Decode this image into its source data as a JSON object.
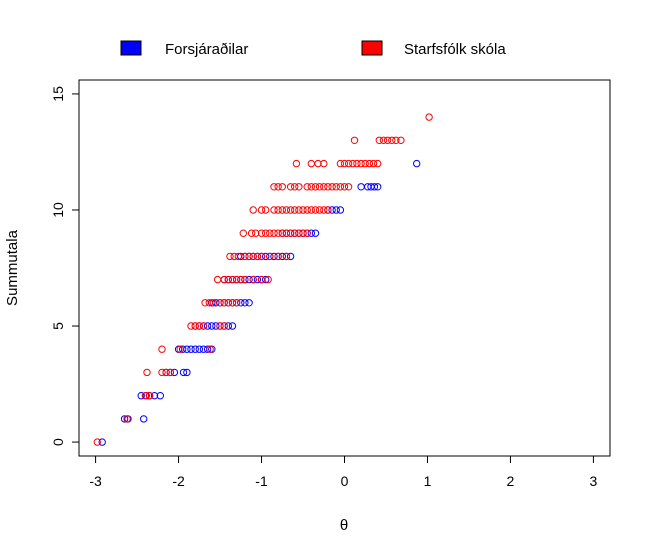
{
  "chart_data": {
    "type": "scatter",
    "title": "",
    "xlabel": "θ",
    "ylabel": "Summutala",
    "xlim": [
      -3.2,
      3.2
    ],
    "ylim": [
      -0.6,
      15.6
    ],
    "xticks": [
      "-3",
      "-2",
      "-1",
      "0",
      "1",
      "2",
      "3"
    ],
    "yticks": [
      "0",
      "5",
      "10",
      "15"
    ],
    "grid": false,
    "legend_position": "top",
    "series": [
      {
        "name": "Forsjáraðilar",
        "color": "#0000FF",
        "marker": "open-circle",
        "points": [
          [
            -2.92,
            0
          ],
          [
            -2.65,
            1
          ],
          [
            -2.61,
            1
          ],
          [
            -2.42,
            1
          ],
          [
            -2.45,
            2
          ],
          [
            -2.39,
            2
          ],
          [
            -2.35,
            2
          ],
          [
            -2.29,
            2
          ],
          [
            -2.22,
            2
          ],
          [
            -2.15,
            3
          ],
          [
            -2.1,
            3
          ],
          [
            -2.05,
            3
          ],
          [
            -1.94,
            3
          ],
          [
            -1.9,
            3
          ],
          [
            -2.0,
            4
          ],
          [
            -1.95,
            4
          ],
          [
            -1.9,
            4
          ],
          [
            -1.85,
            4
          ],
          [
            -1.8,
            4
          ],
          [
            -1.75,
            4
          ],
          [
            -1.7,
            4
          ],
          [
            -1.65,
            4
          ],
          [
            -1.6,
            4
          ],
          [
            -1.8,
            5
          ],
          [
            -1.75,
            5
          ],
          [
            -1.7,
            5
          ],
          [
            -1.65,
            5
          ],
          [
            -1.6,
            5
          ],
          [
            -1.55,
            5
          ],
          [
            -1.5,
            5
          ],
          [
            -1.45,
            5
          ],
          [
            -1.4,
            5
          ],
          [
            -1.35,
            5
          ],
          [
            -1.6,
            6
          ],
          [
            -1.55,
            6
          ],
          [
            -1.5,
            6
          ],
          [
            -1.45,
            6
          ],
          [
            -1.4,
            6
          ],
          [
            -1.35,
            6
          ],
          [
            -1.3,
            6
          ],
          [
            -1.25,
            6
          ],
          [
            -1.2,
            6
          ],
          [
            -1.15,
            6
          ],
          [
            -1.45,
            7
          ],
          [
            -1.4,
            7
          ],
          [
            -1.35,
            7
          ],
          [
            -1.3,
            7
          ],
          [
            -1.25,
            7
          ],
          [
            -1.2,
            7
          ],
          [
            -1.15,
            7
          ],
          [
            -1.1,
            7
          ],
          [
            -1.05,
            7
          ],
          [
            -1.0,
            7
          ],
          [
            -0.95,
            7
          ],
          [
            -1.25,
            8
          ],
          [
            -1.2,
            8
          ],
          [
            -1.15,
            8
          ],
          [
            -1.1,
            8
          ],
          [
            -1.05,
            8
          ],
          [
            -1.0,
            8
          ],
          [
            -0.95,
            8
          ],
          [
            -0.9,
            8
          ],
          [
            -0.85,
            8
          ],
          [
            -0.8,
            8
          ],
          [
            -0.75,
            8
          ],
          [
            -0.7,
            8
          ],
          [
            -0.65,
            8
          ],
          [
            -0.75,
            9
          ],
          [
            -0.7,
            9
          ],
          [
            -0.65,
            9
          ],
          [
            -0.6,
            9
          ],
          [
            -0.55,
            9
          ],
          [
            -0.5,
            9
          ],
          [
            -0.45,
            9
          ],
          [
            -0.4,
            9
          ],
          [
            -0.35,
            9
          ],
          [
            -0.2,
            10
          ],
          [
            -0.15,
            10
          ],
          [
            -0.1,
            10
          ],
          [
            -0.05,
            10
          ],
          [
            0.2,
            11
          ],
          [
            0.28,
            11
          ],
          [
            0.32,
            11
          ],
          [
            0.36,
            11
          ],
          [
            0.4,
            11
          ],
          [
            0.87,
            12
          ]
        ]
      },
      {
        "name": "Starfsfólk skóla",
        "color": "#FF0000",
        "marker": "open-circle",
        "points": [
          [
            -2.98,
            0
          ],
          [
            -2.62,
            1
          ],
          [
            -2.4,
            2
          ],
          [
            -2.35,
            2
          ],
          [
            -2.38,
            3
          ],
          [
            -2.2,
            3
          ],
          [
            -2.15,
            3
          ],
          [
            -2.1,
            3
          ],
          [
            -2.2,
            4
          ],
          [
            -1.98,
            4
          ],
          [
            -1.62,
            4
          ],
          [
            -1.85,
            5
          ],
          [
            -1.8,
            5
          ],
          [
            -1.75,
            5
          ],
          [
            -1.7,
            5
          ],
          [
            -1.5,
            5
          ],
          [
            -1.45,
            5
          ],
          [
            -1.68,
            6
          ],
          [
            -1.63,
            6
          ],
          [
            -1.58,
            6
          ],
          [
            -1.5,
            6
          ],
          [
            -1.45,
            6
          ],
          [
            -1.4,
            6
          ],
          [
            -1.35,
            6
          ],
          [
            -1.3,
            6
          ],
          [
            -1.53,
            7
          ],
          [
            -1.45,
            7
          ],
          [
            -1.4,
            7
          ],
          [
            -1.35,
            7
          ],
          [
            -1.3,
            7
          ],
          [
            -1.25,
            7
          ],
          [
            -1.2,
            7
          ],
          [
            -1.1,
            7
          ],
          [
            -1.0,
            7
          ],
          [
            -0.92,
            7
          ],
          [
            -1.38,
            8
          ],
          [
            -1.33,
            8
          ],
          [
            -1.28,
            8
          ],
          [
            -1.2,
            8
          ],
          [
            -1.15,
            8
          ],
          [
            -1.1,
            8
          ],
          [
            -1.05,
            8
          ],
          [
            -1.0,
            8
          ],
          [
            -0.9,
            8
          ],
          [
            -0.8,
            8
          ],
          [
            -0.7,
            8
          ],
          [
            -1.22,
            9
          ],
          [
            -1.12,
            9
          ],
          [
            -1.07,
            9
          ],
          [
            -1.0,
            9
          ],
          [
            -0.95,
            9
          ],
          [
            -0.9,
            9
          ],
          [
            -0.85,
            9
          ],
          [
            -0.8,
            9
          ],
          [
            -0.75,
            9
          ],
          [
            -0.7,
            9
          ],
          [
            -0.65,
            9
          ],
          [
            -0.6,
            9
          ],
          [
            -0.55,
            9
          ],
          [
            -0.5,
            9
          ],
          [
            -0.45,
            9
          ],
          [
            -1.1,
            10
          ],
          [
            -1.0,
            10
          ],
          [
            -0.95,
            10
          ],
          [
            -0.85,
            10
          ],
          [
            -0.8,
            10
          ],
          [
            -0.75,
            10
          ],
          [
            -0.7,
            10
          ],
          [
            -0.65,
            10
          ],
          [
            -0.6,
            10
          ],
          [
            -0.55,
            10
          ],
          [
            -0.5,
            10
          ],
          [
            -0.45,
            10
          ],
          [
            -0.4,
            10
          ],
          [
            -0.35,
            10
          ],
          [
            -0.3,
            10
          ],
          [
            -0.25,
            10
          ],
          [
            -0.2,
            10
          ],
          [
            -0.85,
            11
          ],
          [
            -0.8,
            11
          ],
          [
            -0.75,
            11
          ],
          [
            -0.65,
            11
          ],
          [
            -0.6,
            11
          ],
          [
            -0.55,
            11
          ],
          [
            -0.45,
            11
          ],
          [
            -0.4,
            11
          ],
          [
            -0.35,
            11
          ],
          [
            -0.3,
            11
          ],
          [
            -0.25,
            11
          ],
          [
            -0.2,
            11
          ],
          [
            -0.15,
            11
          ],
          [
            -0.1,
            11
          ],
          [
            -0.05,
            11
          ],
          [
            0.0,
            11
          ],
          [
            0.05,
            11
          ],
          [
            -0.58,
            12
          ],
          [
            -0.4,
            12
          ],
          [
            -0.32,
            12
          ],
          [
            -0.25,
            12
          ],
          [
            -0.05,
            12
          ],
          [
            0.0,
            12
          ],
          [
            0.05,
            12
          ],
          [
            0.1,
            12
          ],
          [
            0.15,
            12
          ],
          [
            0.2,
            12
          ],
          [
            0.25,
            12
          ],
          [
            0.3,
            12
          ],
          [
            0.35,
            12
          ],
          [
            0.4,
            12
          ],
          [
            0.12,
            13
          ],
          [
            0.42,
            13
          ],
          [
            0.47,
            13
          ],
          [
            0.52,
            13
          ],
          [
            0.57,
            13
          ],
          [
            0.62,
            13
          ],
          [
            0.68,
            13
          ],
          [
            1.02,
            14
          ]
        ]
      }
    ]
  }
}
